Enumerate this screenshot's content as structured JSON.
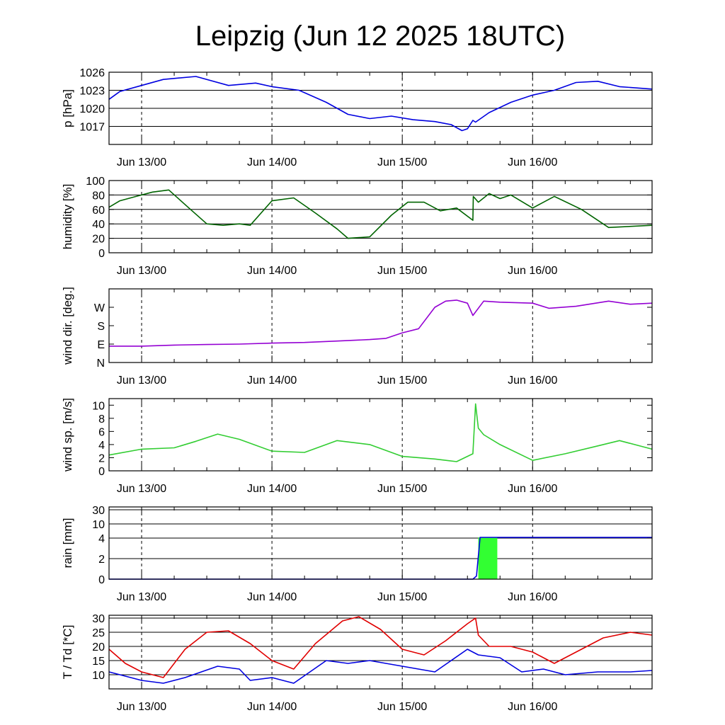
{
  "title": "Leipzig (Jun 12 2025 18UTC)",
  "x_axis": {
    "type": "time",
    "start": "2025-06-12T18:00Z",
    "end": "2025-06-16T22:00Z",
    "major_ticks": [
      "2025-06-13T00:00Z",
      "2025-06-14T00:00Z",
      "2025-06-15T00:00Z",
      "2025-06-16T00:00Z"
    ],
    "tick_labels": [
      "Jun 13/00",
      "Jun 14/00",
      "Jun 15/00",
      "Jun 16/00"
    ],
    "minor_tick_hours": 6
  },
  "colors": {
    "pressure": "#0000e0",
    "humidity": "#006400",
    "wind_dir": "#9400d3",
    "wind_speed": "#32cd32",
    "rain_bar": "#32ff32",
    "rain_sum": "#0000e0",
    "temperature": "#e00000",
    "dewpoint": "#0000e0"
  },
  "chart_data": [
    {
      "type": "line",
      "ylabel": "p [hPa]",
      "ylim": [
        1014,
        1026
      ],
      "yticks": [
        1017,
        1020,
        1023,
        1026
      ],
      "gridlines": [
        1017,
        1020,
        1023,
        1026
      ],
      "series": [
        {
          "color_key": "pressure",
          "x": [
            "2025-06-12T18:00Z",
            "2025-06-12T20:00Z",
            "2025-06-13T00:00Z",
            "2025-06-13T04:00Z",
            "2025-06-13T10:00Z",
            "2025-06-13T16:00Z",
            "2025-06-13T21:00Z",
            "2025-06-14T00:00Z",
            "2025-06-14T05:00Z",
            "2025-06-14T10:00Z",
            "2025-06-14T14:00Z",
            "2025-06-14T18:00Z",
            "2025-06-14T22:00Z",
            "2025-06-15T02:00Z",
            "2025-06-15T06:00Z",
            "2025-06-15T09:00Z",
            "2025-06-15T11:00Z",
            "2025-06-15T12:00Z",
            "2025-06-15T13:00Z",
            "2025-06-15T13:30Z",
            "2025-06-15T16:00Z",
            "2025-06-15T20:00Z",
            "2025-06-16T00:00Z",
            "2025-06-16T04:00Z",
            "2025-06-16T08:00Z",
            "2025-06-16T12:00Z",
            "2025-06-16T16:00Z",
            "2025-06-16T22:00Z"
          ],
          "y": [
            1021.5,
            1022.8,
            1023.8,
            1024.8,
            1025.3,
            1023.8,
            1024.2,
            1023.6,
            1023.0,
            1021.0,
            1019.0,
            1018.3,
            1018.7,
            1018.1,
            1017.8,
            1017.3,
            1016.3,
            1016.6,
            1018.0,
            1017.7,
            1019.3,
            1021.0,
            1022.2,
            1023.0,
            1024.3,
            1024.5,
            1023.6,
            1023.2
          ]
        }
      ]
    },
    {
      "type": "line",
      "ylabel": "humidity [%]",
      "ylim": [
        0,
        100
      ],
      "yticks": [
        0,
        20,
        40,
        60,
        80,
        100
      ],
      "gridlines": [
        20,
        40,
        60,
        80,
        100
      ],
      "series": [
        {
          "color_key": "humidity",
          "x": [
            "2025-06-12T18:00Z",
            "2025-06-12T20:00Z",
            "2025-06-12T23:00Z",
            "2025-06-13T02:00Z",
            "2025-06-13T05:00Z",
            "2025-06-13T09:00Z",
            "2025-06-13T12:00Z",
            "2025-06-13T15:00Z",
            "2025-06-13T18:00Z",
            "2025-06-13T20:00Z",
            "2025-06-14T00:00Z",
            "2025-06-14T04:00Z",
            "2025-06-14T08:00Z",
            "2025-06-14T12:00Z",
            "2025-06-14T14:00Z",
            "2025-06-14T18:00Z",
            "2025-06-14T22:00Z",
            "2025-06-15T01:00Z",
            "2025-06-15T04:00Z",
            "2025-06-15T07:00Z",
            "2025-06-15T10:00Z",
            "2025-06-15T13:00Z",
            "2025-06-15T13:05Z",
            "2025-06-15T14:00Z",
            "2025-06-15T16:00Z",
            "2025-06-15T18:00Z",
            "2025-06-15T20:00Z",
            "2025-06-16T00:00Z",
            "2025-06-16T04:00Z",
            "2025-06-16T09:00Z",
            "2025-06-16T14:00Z",
            "2025-06-16T22:00Z"
          ],
          "y": [
            63,
            72,
            78,
            84,
            87,
            60,
            40,
            38,
            40,
            38,
            72,
            76,
            55,
            33,
            20,
            22,
            52,
            70,
            70,
            58,
            62,
            45,
            78,
            70,
            82,
            75,
            80,
            62,
            78,
            60,
            35,
            38
          ]
        }
      ]
    },
    {
      "type": "line",
      "ylabel": "wind dir. [deg.]",
      "ylim": [
        0,
        360
      ],
      "yticks": [
        0,
        90,
        180,
        270
      ],
      "ytick_labels": [
        "N",
        "E",
        "S",
        "W"
      ],
      "series": [
        {
          "color_key": "wind_dir",
          "x": [
            "2025-06-12T18:00Z",
            "2025-06-13T00:00Z",
            "2025-06-13T06:00Z",
            "2025-06-13T12:00Z",
            "2025-06-13T18:00Z",
            "2025-06-14T00:00Z",
            "2025-06-14T06:00Z",
            "2025-06-14T12:00Z",
            "2025-06-14T18:00Z",
            "2025-06-14T21:00Z",
            "2025-06-15T00:00Z",
            "2025-06-15T03:00Z",
            "2025-06-15T06:00Z",
            "2025-06-15T08:00Z",
            "2025-06-15T10:00Z",
            "2025-06-15T12:00Z",
            "2025-06-15T13:00Z",
            "2025-06-15T15:00Z",
            "2025-06-15T18:00Z",
            "2025-06-16T00:00Z",
            "2025-06-16T03:00Z",
            "2025-06-16T08:00Z",
            "2025-06-16T14:00Z",
            "2025-06-16T18:00Z",
            "2025-06-16T22:00Z"
          ],
          "y": [
            80,
            80,
            85,
            88,
            90,
            95,
            98,
            105,
            112,
            118,
            145,
            165,
            270,
            300,
            305,
            290,
            230,
            300,
            295,
            290,
            265,
            275,
            300,
            285,
            290
          ]
        }
      ]
    },
    {
      "type": "line",
      "ylabel": "wind sp. [m/s]",
      "ylim": [
        0,
        11
      ],
      "yticks": [
        0,
        2,
        4,
        6,
        8,
        10
      ],
      "series": [
        {
          "color_key": "wind_speed",
          "x": [
            "2025-06-12T18:00Z",
            "2025-06-13T00:00Z",
            "2025-06-13T06:00Z",
            "2025-06-13T10:00Z",
            "2025-06-13T14:00Z",
            "2025-06-13T18:00Z",
            "2025-06-14T00:00Z",
            "2025-06-14T06:00Z",
            "2025-06-14T12:00Z",
            "2025-06-14T18:00Z",
            "2025-06-15T00:00Z",
            "2025-06-15T06:00Z",
            "2025-06-15T10:00Z",
            "2025-06-15T13:00Z",
            "2025-06-15T13:30Z",
            "2025-06-15T14:00Z",
            "2025-06-15T15:00Z",
            "2025-06-15T18:00Z",
            "2025-06-16T00:00Z",
            "2025-06-16T06:00Z",
            "2025-06-16T12:00Z",
            "2025-06-16T16:00Z",
            "2025-06-16T22:00Z"
          ],
          "y": [
            2.4,
            3.3,
            3.5,
            4.5,
            5.6,
            4.8,
            3.0,
            2.8,
            4.6,
            4.0,
            2.2,
            1.8,
            1.4,
            2.6,
            10.2,
            6.5,
            5.5,
            4.0,
            1.6,
            2.6,
            3.8,
            4.6,
            3.3
          ]
        }
      ]
    },
    {
      "type": "bar+line",
      "ylabel": "rain [mm]",
      "yticks": [
        0,
        2,
        4,
        10,
        30
      ],
      "gridlines": [
        2,
        4,
        10,
        30
      ],
      "bars": {
        "color_key": "rain_bar",
        "x_start": "2025-06-15T14:00Z",
        "x_end": "2025-06-15T17:30Z",
        "value": 4.3
      },
      "series": [
        {
          "color_key": "rain_sum",
          "x": [
            "2025-06-12T18:00Z",
            "2025-06-15T13:00Z",
            "2025-06-15T13:40Z",
            "2025-06-15T14:20Z",
            "2025-06-16T22:00Z"
          ],
          "y": [
            0,
            0,
            0.3,
            4.3,
            4.3
          ]
        }
      ]
    },
    {
      "type": "line",
      "ylabel": "T / Td [*C]",
      "ylim": [
        5,
        31
      ],
      "yticks": [
        10,
        15,
        20,
        25,
        30
      ],
      "gridlines": [
        10,
        15,
        20,
        25,
        30
      ],
      "series": [
        {
          "color_key": "temperature",
          "x": [
            "2025-06-12T18:00Z",
            "2025-06-12T21:00Z",
            "2025-06-13T00:00Z",
            "2025-06-13T04:00Z",
            "2025-06-13T08:00Z",
            "2025-06-13T12:00Z",
            "2025-06-13T16:00Z",
            "2025-06-13T20:00Z",
            "2025-06-14T00:00Z",
            "2025-06-14T04:00Z",
            "2025-06-14T08:00Z",
            "2025-06-14T13:00Z",
            "2025-06-14T16:00Z",
            "2025-06-14T20:00Z",
            "2025-06-15T00:00Z",
            "2025-06-15T04:00Z",
            "2025-06-15T08:00Z",
            "2025-06-15T12:00Z",
            "2025-06-15T13:30Z",
            "2025-06-15T14:00Z",
            "2025-06-15T16:00Z",
            "2025-06-15T20:00Z",
            "2025-06-16T00:00Z",
            "2025-06-16T04:00Z",
            "2025-06-16T08:00Z",
            "2025-06-16T13:00Z",
            "2025-06-16T18:00Z",
            "2025-06-16T22:00Z"
          ],
          "y": [
            19,
            14,
            11,
            9,
            19,
            25,
            25.5,
            21,
            15,
            12,
            21,
            29,
            30.5,
            26,
            19,
            17,
            22,
            28,
            30,
            24,
            20,
            20,
            18,
            14,
            18,
            23,
            25,
            24
          ]
        },
        {
          "color_key": "dewpoint",
          "x": [
            "2025-06-12T18:00Z",
            "2025-06-13T00:00Z",
            "2025-06-13T04:00Z",
            "2025-06-13T08:00Z",
            "2025-06-13T14:00Z",
            "2025-06-13T18:00Z",
            "2025-06-13T20:00Z",
            "2025-06-14T00:00Z",
            "2025-06-14T04:00Z",
            "2025-06-14T10:00Z",
            "2025-06-14T14:00Z",
            "2025-06-14T18:00Z",
            "2025-06-15T00:00Z",
            "2025-06-15T06:00Z",
            "2025-06-15T12:00Z",
            "2025-06-15T14:00Z",
            "2025-06-15T18:00Z",
            "2025-06-15T22:00Z",
            "2025-06-16T02:00Z",
            "2025-06-16T06:00Z",
            "2025-06-16T12:00Z",
            "2025-06-16T18:00Z",
            "2025-06-16T22:00Z"
          ],
          "y": [
            11,
            8,
            7,
            9,
            13,
            12,
            8,
            9,
            7,
            15,
            14,
            15,
            13,
            11,
            19,
            17,
            16,
            11,
            12,
            10,
            11,
            11,
            11.5
          ]
        }
      ]
    }
  ]
}
